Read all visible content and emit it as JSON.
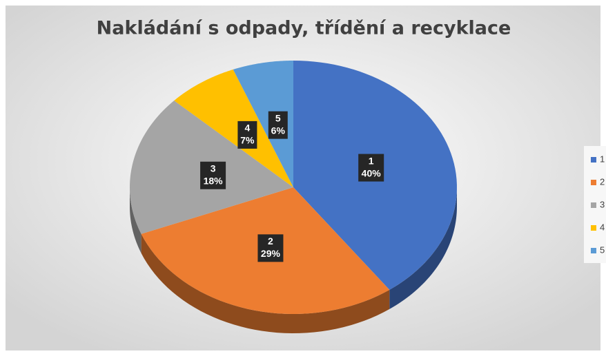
{
  "chart_data": {
    "type": "pie",
    "title": "Nakládání s odpady, třídění a recyklace",
    "categories": [
      "1",
      "2",
      "3",
      "4",
      "5"
    ],
    "values": [
      40,
      29,
      18,
      7,
      6
    ],
    "value_labels": [
      "40%",
      "29%",
      "18%",
      "7%",
      "6%"
    ],
    "colors": [
      "#4472c4",
      "#ed7d31",
      "#a5a5a5",
      "#ffc000",
      "#5b9bd5"
    ],
    "legend": "right"
  }
}
